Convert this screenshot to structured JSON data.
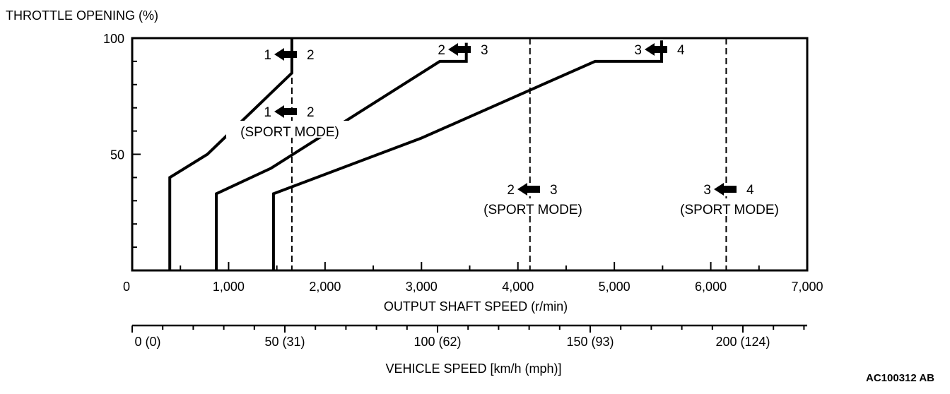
{
  "chart_data": {
    "type": "line",
    "title": "",
    "ylabel": "THROTTLE OPENING (%)",
    "xlabel": "OUTPUT SHAFT SPEED (r/min)",
    "x2label": "VEHICLE SPEED [km/h (mph)]",
    "xlim": [
      0,
      7000
    ],
    "ylim": [
      0,
      100
    ],
    "x_ticks": [
      0,
      1000,
      2000,
      3000,
      4000,
      5000,
      6000,
      7000
    ],
    "x_tick_labels": [
      "0",
      "1,000",
      "2,000",
      "3,000",
      "4,000",
      "5,000",
      "6,000",
      "7,000"
    ],
    "y_ticks": [
      50,
      100
    ],
    "y_tick_labels": [
      "50",
      "100"
    ],
    "x2_ticks": [
      0,
      50,
      100,
      150,
      200
    ],
    "x2_tick_labels": [
      "0 (0)",
      "50 (31)",
      "100 (62)",
      "150 (93)",
      "200 (124)"
    ],
    "x2_minor_step": 10,
    "grid": false,
    "series": [
      {
        "name": "1 ← 2",
        "points": [
          [
            390,
            0
          ],
          [
            390,
            40
          ],
          [
            780,
            50
          ],
          [
            1656,
            85
          ],
          [
            1656,
            100
          ]
        ]
      },
      {
        "name": "2 ← 3",
        "points": [
          [
            872,
            0
          ],
          [
            872,
            33
          ],
          [
            1440,
            44
          ],
          [
            3190,
            90
          ],
          [
            3465,
            90
          ],
          [
            3465,
            98
          ]
        ]
      },
      {
        "name": "3 ← 4",
        "points": [
          [
            1465,
            0
          ],
          [
            1465,
            33
          ],
          [
            3000,
            57
          ],
          [
            4800,
            90
          ],
          [
            5490,
            90
          ],
          [
            5490,
            99
          ]
        ]
      }
    ],
    "sport_mode_lines": [
      {
        "name": "1 ← 2 (SPORT MODE)",
        "x": 1656
      },
      {
        "name": "2 ← 3 (SPORT MODE)",
        "x": 4125
      },
      {
        "name": "3 ← 4 (SPORT MODE)",
        "x": 6160
      }
    ],
    "annotations": [
      {
        "from": "1",
        "to": "2",
        "mode": ""
      },
      {
        "from": "2",
        "to": "3",
        "mode": ""
      },
      {
        "from": "3",
        "to": "4",
        "mode": ""
      },
      {
        "from": "1",
        "to": "2",
        "mode": "(SPORT MODE)"
      },
      {
        "from": "2",
        "to": "3",
        "mode": "(SPORT MODE)"
      },
      {
        "from": "3",
        "to": "4",
        "mode": "(SPORT MODE)"
      }
    ],
    "figure_code": "AC100312 AB"
  }
}
